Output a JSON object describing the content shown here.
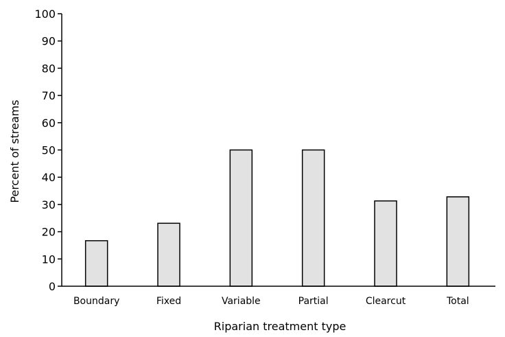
{
  "chart_data": {
    "type": "bar",
    "categories": [
      "Boundary",
      "Fixed",
      "Variable",
      "Partial",
      "Clearcut",
      "Total"
    ],
    "values": [
      16.7,
      23.1,
      50.0,
      50.0,
      31.3,
      32.8
    ],
    "xlabel": "Riparian treatment type",
    "ylabel": "Percent of streams",
    "ylim": [
      0,
      100
    ],
    "yticks": [
      "0",
      "10",
      "20",
      "30",
      "40",
      "50",
      "60",
      "70",
      "80",
      "90",
      "100"
    ],
    "grid": false,
    "colors": {
      "bar_fill": "#e2e2e2",
      "bar_stroke": "#000000"
    }
  }
}
